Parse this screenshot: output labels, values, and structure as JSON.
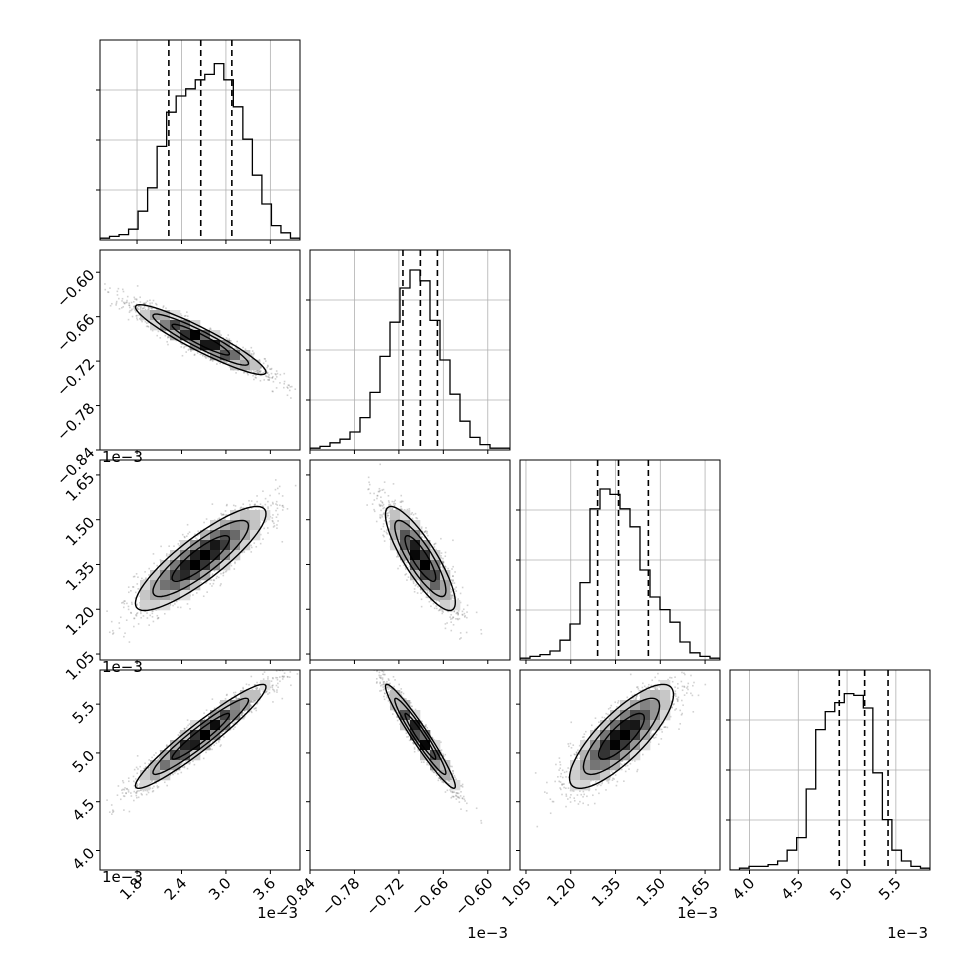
{
  "chart_data": {
    "type": "corner",
    "exponent_label": "1e−3",
    "colors": {
      "hist": "#000000",
      "grid": "#b0b0b0",
      "points": "#7f7f7f",
      "frame": "#000000",
      "background": "#ffffff"
    },
    "params": [
      {
        "range": [
          1.3,
          4.0
        ],
        "ticks": [
          1.8,
          2.4,
          3.0,
          3.6
        ],
        "tick_labels": [
          "1.8",
          "2.4",
          "3.0",
          "3.6"
        ],
        "quantiles": [
          2.23,
          2.66,
          3.08
        ],
        "mean": 2.66,
        "sd": 0.43
      },
      {
        "range": [
          -0.84,
          -0.57
        ],
        "ticks": [
          -0.84,
          -0.78,
          -0.72,
          -0.66,
          -0.6
        ],
        "tick_labels": [
          "−0.84",
          "−0.78",
          "−0.72",
          "−0.66",
          "−0.60"
        ],
        "quantiles": [
          -0.7145,
          -0.691,
          -0.668
        ],
        "mean": -0.691,
        "sd": 0.023
      },
      {
        "range": [
          1.03,
          1.7
        ],
        "ticks": [
          1.05,
          1.2,
          1.35,
          1.5,
          1.65
        ],
        "tick_labels": [
          "1.05",
          "1.20",
          "1.35",
          "1.50",
          "1.65"
        ],
        "quantiles": [
          1.29,
          1.36,
          1.46
        ],
        "mean": 1.37,
        "sd": 0.085
      },
      {
        "range": [
          3.8,
          5.85
        ],
        "ticks": [
          4.0,
          4.5,
          5.0,
          5.5
        ],
        "tick_labels": [
          "4.0",
          "4.5",
          "5.0",
          "5.5"
        ],
        "quantiles": [
          4.92,
          5.18,
          5.42
        ],
        "mean": 5.17,
        "sd": 0.26
      }
    ],
    "hist_heights": [
      [
        0.01,
        0.02,
        0.03,
        0.06,
        0.16,
        0.29,
        0.52,
        0.71,
        0.8,
        0.84,
        0.89,
        0.92,
        0.98,
        0.89,
        0.74,
        0.56,
        0.36,
        0.2,
        0.08,
        0.04,
        0.01
      ],
      [
        0.01,
        0.02,
        0.04,
        0.06,
        0.1,
        0.18,
        0.32,
        0.52,
        0.71,
        0.9,
        1.0,
        0.94,
        0.72,
        0.5,
        0.31,
        0.16,
        0.07,
        0.03,
        0.01,
        0.01
      ],
      [
        0.01,
        0.02,
        0.03,
        0.05,
        0.11,
        0.2,
        0.43,
        0.84,
        0.95,
        0.92,
        0.84,
        0.74,
        0.5,
        0.35,
        0.28,
        0.21,
        0.1,
        0.04,
        0.02,
        0.01
      ],
      [
        0.0,
        0.01,
        0.02,
        0.02,
        0.03,
        0.05,
        0.11,
        0.18,
        0.45,
        0.78,
        0.88,
        0.93,
        0.98,
        0.97,
        0.9,
        0.54,
        0.28,
        0.11,
        0.05,
        0.02,
        0.01
      ]
    ],
    "correlations": [
      {
        "row": 1,
        "col": 0,
        "rho": -0.93
      },
      {
        "row": 2,
        "col": 0,
        "rho": 0.86
      },
      {
        "row": 2,
        "col": 1,
        "rho": -0.84
      },
      {
        "row": 3,
        "col": 0,
        "rho": 0.95
      },
      {
        "row": 3,
        "col": 1,
        "rho": -0.96
      },
      {
        "row": 3,
        "col": 2,
        "rho": 0.8
      }
    ],
    "grid": true
  }
}
